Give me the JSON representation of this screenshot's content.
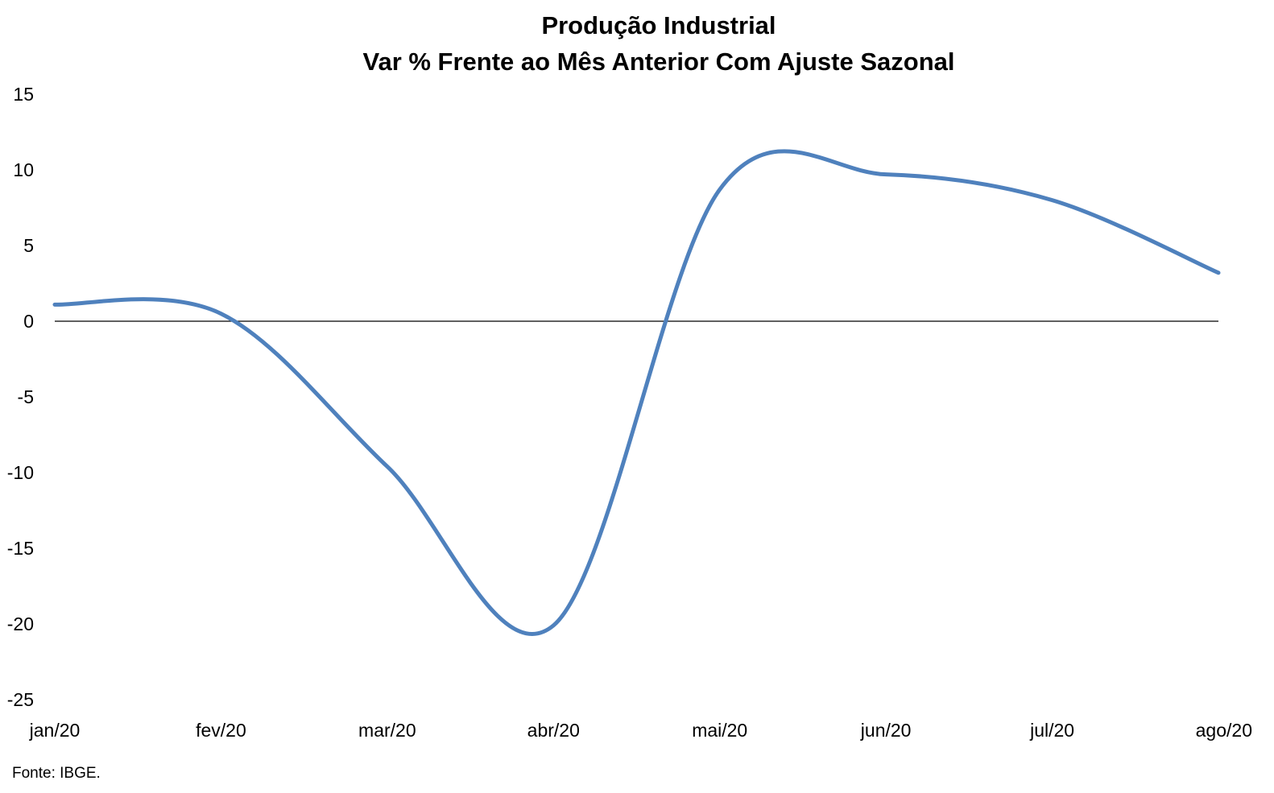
{
  "chart_data": {
    "type": "line",
    "title": "Produção Industrial",
    "subtitle": "Var % Frente ao Mês Anterior Com Ajuste Sazonal",
    "xlabel": "",
    "ylabel": "",
    "categories": [
      "jan/20",
      "fev/20",
      "mar/20",
      "abr/20",
      "mai/20",
      "jun/20",
      "jul/20",
      "ago/20"
    ],
    "series": [
      {
        "values": [
          1.1,
          0.5,
          -9.6,
          -20.1,
          8.7,
          9.7,
          8.0,
          3.2
        ],
        "color": "#4F81BD",
        "smooth": true
      }
    ],
    "ylim": [
      -25,
      15
    ],
    "yticks": [
      15,
      10,
      5,
      0,
      -5,
      -10,
      -15,
      -20,
      -25
    ],
    "grid": false,
    "zero_line": true,
    "legend": "none",
    "source": "Fonte: IBGE."
  }
}
